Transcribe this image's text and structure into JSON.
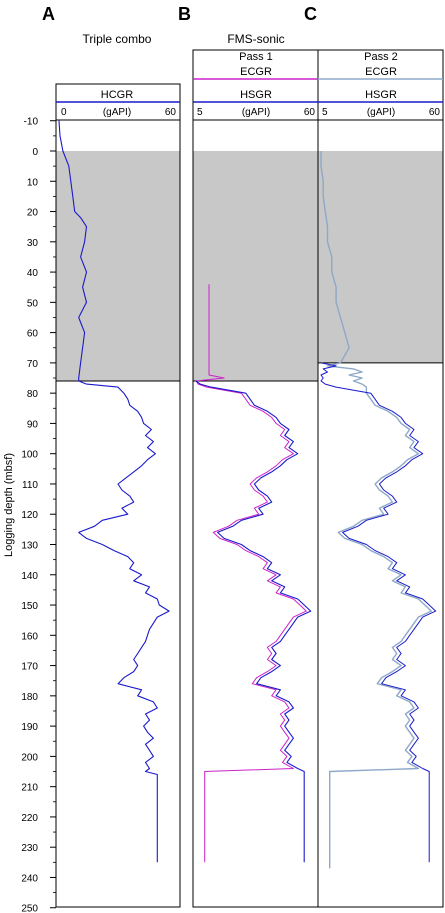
{
  "panel_letters": [
    "A",
    "B",
    "C"
  ],
  "panel_titles": {
    "a": "Triple combo",
    "bc": "FMS-sonic"
  },
  "pass_labels": [
    "Pass 1",
    "Pass 2"
  ],
  "colors": {
    "hsgr": "#1a1acc",
    "ecgr_pass1": "#cc22cc",
    "ecgr_pass2": "#8ea8c8",
    "shade": "#c8c8c8"
  },
  "chart_data": {
    "type": "line",
    "y_axis": {
      "label": "Logging depth (mbsf)",
      "range": [
        -10,
        250
      ],
      "ticks": [
        -10,
        0,
        10,
        20,
        30,
        40,
        50,
        60,
        70,
        80,
        90,
        100,
        110,
        120,
        130,
        140,
        150,
        160,
        170,
        180,
        190,
        200,
        210,
        220,
        230,
        240,
        250
      ],
      "inverted": true
    },
    "panels": [
      {
        "letter": "A",
        "title": "Triple combo",
        "curves": [
          {
            "name": "HCGR",
            "unit": "(gAPI)",
            "range": [
              0,
              60
            ],
            "color": "#1a1acc"
          }
        ],
        "pipe_shade_depth": [
          0,
          76
        ],
        "series": {
          "HCGR": {
            "depth": [
              -10,
              -5,
              0,
              5,
              10,
              15,
              20,
              22,
              25,
              30,
              35,
              40,
              45,
              50,
              55,
              60,
              65,
              70,
              75,
              76,
              77,
              78,
              80,
              82,
              84,
              86,
              88,
              90,
              92,
              94,
              96,
              98,
              100,
              102,
              104,
              106,
              108,
              110,
              112,
              114,
              116,
              118,
              120,
              122,
              124,
              126,
              128,
              130,
              132,
              134,
              136,
              138,
              140,
              142,
              144,
              146,
              148,
              150,
              152,
              154,
              156,
              158,
              160,
              162,
              164,
              166,
              168,
              170,
              172,
              174,
              176,
              178,
              180,
              182,
              184,
              186,
              188,
              190,
              192,
              194,
              196,
              198,
              200,
              202,
              204,
              205,
              206,
              210,
              220,
              230,
              235
            ],
            "value": [
              0,
              0.5,
              2,
              5,
              6,
              7,
              8,
              11,
              14,
              13,
              11,
              14,
              12,
              14,
              10,
              13,
              12,
              11,
              10,
              10,
              14,
              30,
              33,
              35,
              36,
              40,
              42,
              43,
              47,
              44,
              48,
              45,
              49,
              45,
              42,
              38,
              34,
              30,
              32,
              36,
              38,
              32,
              35,
              22,
              18,
              10,
              14,
              22,
              28,
              35,
              38,
              36,
              42,
              38,
              46,
              44,
              50,
              51,
              56,
              50,
              48,
              46,
              45,
              44,
              42,
              40,
              38,
              40,
              38,
              33,
              30,
              42,
              40,
              48,
              50,
              44,
              46,
              43,
              45,
              48,
              44,
              46,
              48,
              44,
              46,
              44,
              50,
              50,
              50,
              50,
              50
            ]
          }
        }
      },
      {
        "letter": "B",
        "title": "FMS-sonic",
        "pass": "Pass 1",
        "curves": [
          {
            "name": "ECGR",
            "color": "#cc22cc"
          },
          {
            "name": "HSGR",
            "unit": "(gAPI)",
            "range": [
              5,
              60
            ],
            "color": "#1a1acc"
          }
        ],
        "pipe_shade_depth": [
          0,
          76
        ],
        "series": {
          "HSGR": {
            "depth": [
              76,
              77,
              78,
              80,
              82,
              84,
              86,
              88,
              90,
              92,
              94,
              96,
              98,
              100,
              102,
              104,
              106,
              108,
              110,
              112,
              114,
              116,
              118,
              120,
              122,
              124,
              126,
              128,
              130,
              132,
              134,
              136,
              138,
              140,
              142,
              144,
              146,
              148,
              150,
              152,
              154,
              156,
              158,
              160,
              162,
              164,
              166,
              168,
              170,
              172,
              174,
              176,
              178,
              180,
              182,
              184,
              186,
              188,
              190,
              192,
              194,
              196,
              198,
              200,
              202,
              204,
              205,
              206,
              215,
              225,
              235
            ],
            "value": [
              5,
              7,
              12,
              28,
              30,
              32,
              38,
              42,
              44,
              48,
              46,
              50,
              48,
              52,
              47,
              44,
              40,
              35,
              32,
              34,
              38,
              40,
              34,
              36,
              26,
              22,
              15,
              18,
              26,
              30,
              36,
              40,
              38,
              44,
              40,
              46,
              44,
              52,
              55,
              58,
              52,
              50,
              48,
              46,
              44,
              40,
              42,
              40,
              44,
              40,
              35,
              33,
              44,
              42,
              48,
              50,
              46,
              48,
              46,
              48,
              50,
              48,
              46,
              49,
              47,
              52,
              55,
              55,
              55,
              55,
              55
            ]
          },
          "ECGR": {
            "depth": [
              44,
              50,
              60,
              70,
              74,
              75,
              76,
              77,
              78,
              80,
              82,
              84,
              86,
              88,
              90,
              92,
              94,
              96,
              98,
              100,
              102,
              104,
              106,
              108,
              110,
              112,
              114,
              116,
              118,
              120,
              122,
              124,
              126,
              128,
              130,
              132,
              134,
              136,
              138,
              140,
              142,
              144,
              146,
              148,
              150,
              152,
              154,
              156,
              158,
              160,
              162,
              164,
              166,
              168,
              170,
              172,
              174,
              176,
              178,
              180,
              182,
              184,
              186,
              188,
              190,
              192,
              194,
              196,
              198,
              200,
              202,
              204,
              205,
              206,
              215,
              225,
              235
            ],
            "value": [
              11,
              11,
              11,
              11,
              11,
              18,
              5,
              6,
              10,
              26,
              28,
              30,
              36,
              40,
              42,
              46,
              44,
              48,
              46,
              50,
              45,
              42,
              38,
              33,
              30,
              32,
              36,
              38,
              32,
              34,
              24,
              20,
              13,
              16,
              24,
              28,
              34,
              38,
              36,
              42,
              38,
              44,
              42,
              50,
              53,
              56,
              50,
              48,
              46,
              44,
              42,
              38,
              40,
              38,
              42,
              38,
              33,
              31,
              42,
              40,
              46,
              48,
              44,
              46,
              44,
              46,
              48,
              46,
              44,
              47,
              45,
              50,
              9,
              9,
              9,
              9,
              9
            ]
          }
        }
      },
      {
        "letter": "C",
        "pass": "Pass 2",
        "curves": [
          {
            "name": "ECGR",
            "color": "#8ea8c8"
          },
          {
            "name": "HSGR",
            "unit": "(gAPI)",
            "range": [
              5,
              60
            ],
            "color": "#1a1acc"
          }
        ],
        "pipe_shade_depth": [
          0,
          70
        ],
        "series": {
          "HSGR": {
            "depth": [
              70,
              71,
              72,
              73,
              74,
              75,
              76,
              77,
              78,
              80,
              82,
              84,
              86,
              88,
              90,
              92,
              94,
              96,
              98,
              100,
              102,
              104,
              106,
              108,
              110,
              112,
              114,
              116,
              118,
              120,
              122,
              124,
              126,
              128,
              130,
              132,
              134,
              136,
              138,
              140,
              142,
              144,
              146,
              148,
              150,
              152,
              154,
              156,
              158,
              160,
              162,
              164,
              166,
              168,
              170,
              172,
              174,
              176,
              178,
              180,
              182,
              184,
              186,
              188,
              190,
              192,
              194,
              196,
              198,
              200,
              202,
              204,
              205,
              206,
              215,
              225,
              235
            ],
            "value": [
              5,
              12,
              6,
              8,
              5,
              6,
              5,
              7,
              12,
              28,
              30,
              32,
              38,
              42,
              44,
              48,
              46,
              50,
              48,
              52,
              47,
              44,
              40,
              35,
              32,
              34,
              38,
              40,
              34,
              36,
              26,
              22,
              15,
              18,
              26,
              30,
              36,
              40,
              38,
              44,
              40,
              46,
              44,
              52,
              55,
              58,
              52,
              50,
              48,
              46,
              44,
              40,
              42,
              40,
              44,
              40,
              35,
              33,
              44,
              42,
              48,
              50,
              46,
              48,
              46,
              48,
              50,
              48,
              46,
              49,
              47,
              52,
              55,
              55,
              55,
              55,
              55
            ]
          },
          "ECGR": {
            "depth": [
              0,
              5,
              10,
              15,
              20,
              25,
              30,
              35,
              40,
              45,
              50,
              55,
              60,
              65,
              70,
              71,
              72,
              73,
              74,
              75,
              76,
              77,
              78,
              80,
              82,
              84,
              86,
              88,
              90,
              92,
              94,
              96,
              98,
              100,
              102,
              104,
              106,
              108,
              110,
              112,
              114,
              116,
              118,
              120,
              122,
              124,
              126,
              128,
              130,
              132,
              134,
              136,
              138,
              140,
              142,
              144,
              146,
              148,
              150,
              152,
              154,
              156,
              158,
              160,
              162,
              164,
              166,
              168,
              170,
              172,
              174,
              176,
              178,
              180,
              182,
              184,
              186,
              188,
              190,
              192,
              194,
              196,
              198,
              200,
              202,
              204,
              205,
              206,
              215,
              225,
              237
            ],
            "value": [
              5,
              5,
              6,
              6,
              7,
              8,
              8,
              10,
              10,
              12,
              12,
              14,
              16,
              18,
              14,
              8,
              20,
              24,
              18,
              24,
              20,
              24,
              26,
              26,
              28,
              30,
              36,
              40,
              42,
              46,
              44,
              48,
              46,
              50,
              45,
              42,
              38,
              33,
              30,
              32,
              36,
              38,
              32,
              34,
              24,
              20,
              13,
              16,
              24,
              28,
              34,
              38,
              36,
              42,
              38,
              44,
              42,
              50,
              53,
              56,
              50,
              48,
              46,
              44,
              42,
              38,
              40,
              38,
              42,
              38,
              33,
              31,
              42,
              40,
              46,
              48,
              44,
              46,
              44,
              46,
              48,
              46,
              44,
              47,
              45,
              50,
              9,
              9,
              9,
              9,
              9
            ]
          }
        }
      }
    ]
  }
}
